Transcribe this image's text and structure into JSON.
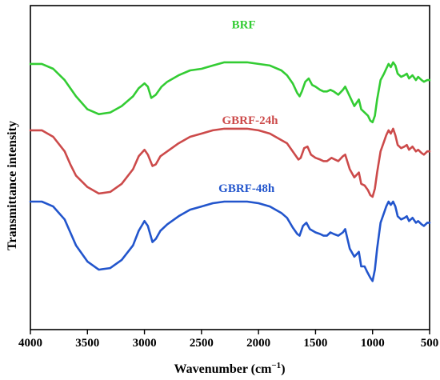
{
  "chart_data": {
    "type": "line",
    "title": "",
    "xlabel": "Wavenumber (cm",
    "xlabel_sup": "−1",
    "xlabel_close": ")",
    "ylabel": "Transmittance intensity",
    "xlim": [
      4000,
      500
    ],
    "x_reversed": true,
    "ylim": [
      0,
      100
    ],
    "y_tick_labels_shown": false,
    "grid": false,
    "legend": "none",
    "xticks": [
      4000,
      3500,
      3000,
      2500,
      2000,
      1500,
      1000,
      500
    ],
    "xtick_labels": [
      "4000",
      "3500",
      "3000",
      "2500",
      "2000",
      "1500",
      "1000",
      "500"
    ],
    "series": [
      {
        "name": "BRF",
        "color": "#33cc33",
        "label_at": [
          2130,
          93
        ],
        "points": [
          [
            4000,
            82
          ],
          [
            3900,
            82
          ],
          [
            3800,
            80.5
          ],
          [
            3700,
            77
          ],
          [
            3600,
            72
          ],
          [
            3500,
            68
          ],
          [
            3400,
            66.5
          ],
          [
            3300,
            67
          ],
          [
            3200,
            69
          ],
          [
            3100,
            72
          ],
          [
            3050,
            74.5
          ],
          [
            3000,
            76
          ],
          [
            2970,
            75
          ],
          [
            2940,
            71.5
          ],
          [
            2900,
            72.5
          ],
          [
            2850,
            75
          ],
          [
            2800,
            76.5
          ],
          [
            2700,
            78.5
          ],
          [
            2600,
            80
          ],
          [
            2500,
            80.5
          ],
          [
            2400,
            81.5
          ],
          [
            2300,
            82.5
          ],
          [
            2200,
            82.5
          ],
          [
            2100,
            82.5
          ],
          [
            2000,
            82
          ],
          [
            1900,
            81.5
          ],
          [
            1800,
            80
          ],
          [
            1750,
            78.5
          ],
          [
            1700,
            76
          ],
          [
            1660,
            73
          ],
          [
            1640,
            72
          ],
          [
            1620,
            73.5
          ],
          [
            1590,
            76.5
          ],
          [
            1560,
            77.5
          ],
          [
            1530,
            75.5
          ],
          [
            1500,
            75
          ],
          [
            1460,
            74
          ],
          [
            1430,
            73.5
          ],
          [
            1400,
            73.5
          ],
          [
            1370,
            74
          ],
          [
            1340,
            73.5
          ],
          [
            1300,
            72.5
          ],
          [
            1260,
            74
          ],
          [
            1240,
            75
          ],
          [
            1200,
            72
          ],
          [
            1160,
            69
          ],
          [
            1120,
            71
          ],
          [
            1100,
            68
          ],
          [
            1070,
            67
          ],
          [
            1040,
            66
          ],
          [
            1020,
            64.5
          ],
          [
            1000,
            64
          ],
          [
            980,
            66
          ],
          [
            960,
            71
          ],
          [
            930,
            77
          ],
          [
            900,
            79
          ],
          [
            880,
            80.5
          ],
          [
            860,
            82
          ],
          [
            840,
            81
          ],
          [
            820,
            82.5
          ],
          [
            800,
            81.5
          ],
          [
            780,
            79
          ],
          [
            750,
            78
          ],
          [
            720,
            78.5
          ],
          [
            700,
            79
          ],
          [
            680,
            77.5
          ],
          [
            650,
            78.5
          ],
          [
            620,
            77
          ],
          [
            600,
            78
          ],
          [
            570,
            77
          ],
          [
            550,
            76.5
          ],
          [
            520,
            77
          ],
          [
            500,
            77
          ]
        ]
      },
      {
        "name": "GBRF-24h",
        "color": "#cc4a4a",
        "label_at": [
          2075,
          63.5
        ],
        "points": [
          [
            4000,
            61.5
          ],
          [
            3900,
            61.5
          ],
          [
            3800,
            59.5
          ],
          [
            3700,
            55
          ],
          [
            3650,
            51
          ],
          [
            3600,
            47.5
          ],
          [
            3500,
            44
          ],
          [
            3400,
            42
          ],
          [
            3300,
            42.5
          ],
          [
            3200,
            45
          ],
          [
            3100,
            49.5
          ],
          [
            3050,
            53.5
          ],
          [
            3000,
            55.5
          ],
          [
            2970,
            54
          ],
          [
            2930,
            50.5
          ],
          [
            2900,
            51
          ],
          [
            2860,
            53.5
          ],
          [
            2800,
            55
          ],
          [
            2700,
            57.5
          ],
          [
            2600,
            59.5
          ],
          [
            2500,
            60.5
          ],
          [
            2400,
            61.5
          ],
          [
            2300,
            62
          ],
          [
            2200,
            62
          ],
          [
            2100,
            62
          ],
          [
            2000,
            61.5
          ],
          [
            1900,
            60.5
          ],
          [
            1800,
            58.5
          ],
          [
            1750,
            57.5
          ],
          [
            1700,
            55
          ],
          [
            1650,
            52.5
          ],
          [
            1630,
            53
          ],
          [
            1600,
            56
          ],
          [
            1570,
            56.5
          ],
          [
            1540,
            54
          ],
          [
            1500,
            53
          ],
          [
            1460,
            52.5
          ],
          [
            1430,
            52
          ],
          [
            1400,
            52
          ],
          [
            1360,
            53
          ],
          [
            1330,
            52.5
          ],
          [
            1300,
            52
          ],
          [
            1260,
            53.5
          ],
          [
            1240,
            54
          ],
          [
            1200,
            49.5
          ],
          [
            1160,
            47
          ],
          [
            1120,
            48.5
          ],
          [
            1100,
            45
          ],
          [
            1070,
            44.5
          ],
          [
            1040,
            43
          ],
          [
            1020,
            41.5
          ],
          [
            1000,
            41
          ],
          [
            980,
            43.5
          ],
          [
            960,
            48.5
          ],
          [
            930,
            55
          ],
          [
            900,
            58
          ],
          [
            880,
            60
          ],
          [
            860,
            61.5
          ],
          [
            840,
            60.5
          ],
          [
            820,
            62
          ],
          [
            800,
            60
          ],
          [
            780,
            57
          ],
          [
            750,
            56
          ],
          [
            720,
            56.5
          ],
          [
            700,
            57
          ],
          [
            680,
            55.5
          ],
          [
            650,
            56.5
          ],
          [
            620,
            55
          ],
          [
            600,
            55.5
          ],
          [
            570,
            54.5
          ],
          [
            550,
            54
          ],
          [
            520,
            55
          ],
          [
            500,
            55
          ]
        ]
      },
      {
        "name": "GBRF-48h",
        "color": "#2255cc",
        "label_at": [
          2105,
          42.5
        ],
        "points": [
          [
            4000,
            39.5
          ],
          [
            3900,
            39.5
          ],
          [
            3800,
            38
          ],
          [
            3700,
            34
          ],
          [
            3650,
            30
          ],
          [
            3600,
            26
          ],
          [
            3500,
            21
          ],
          [
            3400,
            18.5
          ],
          [
            3300,
            19
          ],
          [
            3200,
            21.5
          ],
          [
            3100,
            26
          ],
          [
            3050,
            30.5
          ],
          [
            3000,
            33.5
          ],
          [
            2970,
            32
          ],
          [
            2930,
            27
          ],
          [
            2900,
            28
          ],
          [
            2860,
            30.5
          ],
          [
            2800,
            32.5
          ],
          [
            2700,
            35
          ],
          [
            2600,
            37
          ],
          [
            2500,
            38
          ],
          [
            2400,
            39
          ],
          [
            2300,
            39.5
          ],
          [
            2200,
            39.5
          ],
          [
            2100,
            39.5
          ],
          [
            2000,
            39
          ],
          [
            1900,
            38
          ],
          [
            1800,
            36
          ],
          [
            1750,
            34.5
          ],
          [
            1700,
            31.5
          ],
          [
            1660,
            29.5
          ],
          [
            1640,
            29
          ],
          [
            1610,
            32
          ],
          [
            1580,
            33
          ],
          [
            1550,
            31
          ],
          [
            1500,
            30
          ],
          [
            1460,
            29.5
          ],
          [
            1430,
            29
          ],
          [
            1400,
            29
          ],
          [
            1370,
            30
          ],
          [
            1340,
            29.5
          ],
          [
            1300,
            29
          ],
          [
            1260,
            30
          ],
          [
            1240,
            31
          ],
          [
            1200,
            25
          ],
          [
            1160,
            22.5
          ],
          [
            1120,
            24
          ],
          [
            1100,
            19.5
          ],
          [
            1070,
            19.5
          ],
          [
            1050,
            18
          ],
          [
            1020,
            16
          ],
          [
            1000,
            15
          ],
          [
            980,
            18.5
          ],
          [
            960,
            25
          ],
          [
            930,
            33
          ],
          [
            900,
            36
          ],
          [
            880,
            38
          ],
          [
            860,
            39.5
          ],
          [
            840,
            38.5
          ],
          [
            820,
            39.5
          ],
          [
            800,
            38
          ],
          [
            780,
            35
          ],
          [
            750,
            34
          ],
          [
            720,
            34.5
          ],
          [
            700,
            35
          ],
          [
            680,
            33.5
          ],
          [
            650,
            34.5
          ],
          [
            620,
            33
          ],
          [
            600,
            33.5
          ],
          [
            570,
            32.5
          ],
          [
            550,
            32
          ],
          [
            520,
            33
          ],
          [
            500,
            33
          ]
        ]
      }
    ]
  }
}
